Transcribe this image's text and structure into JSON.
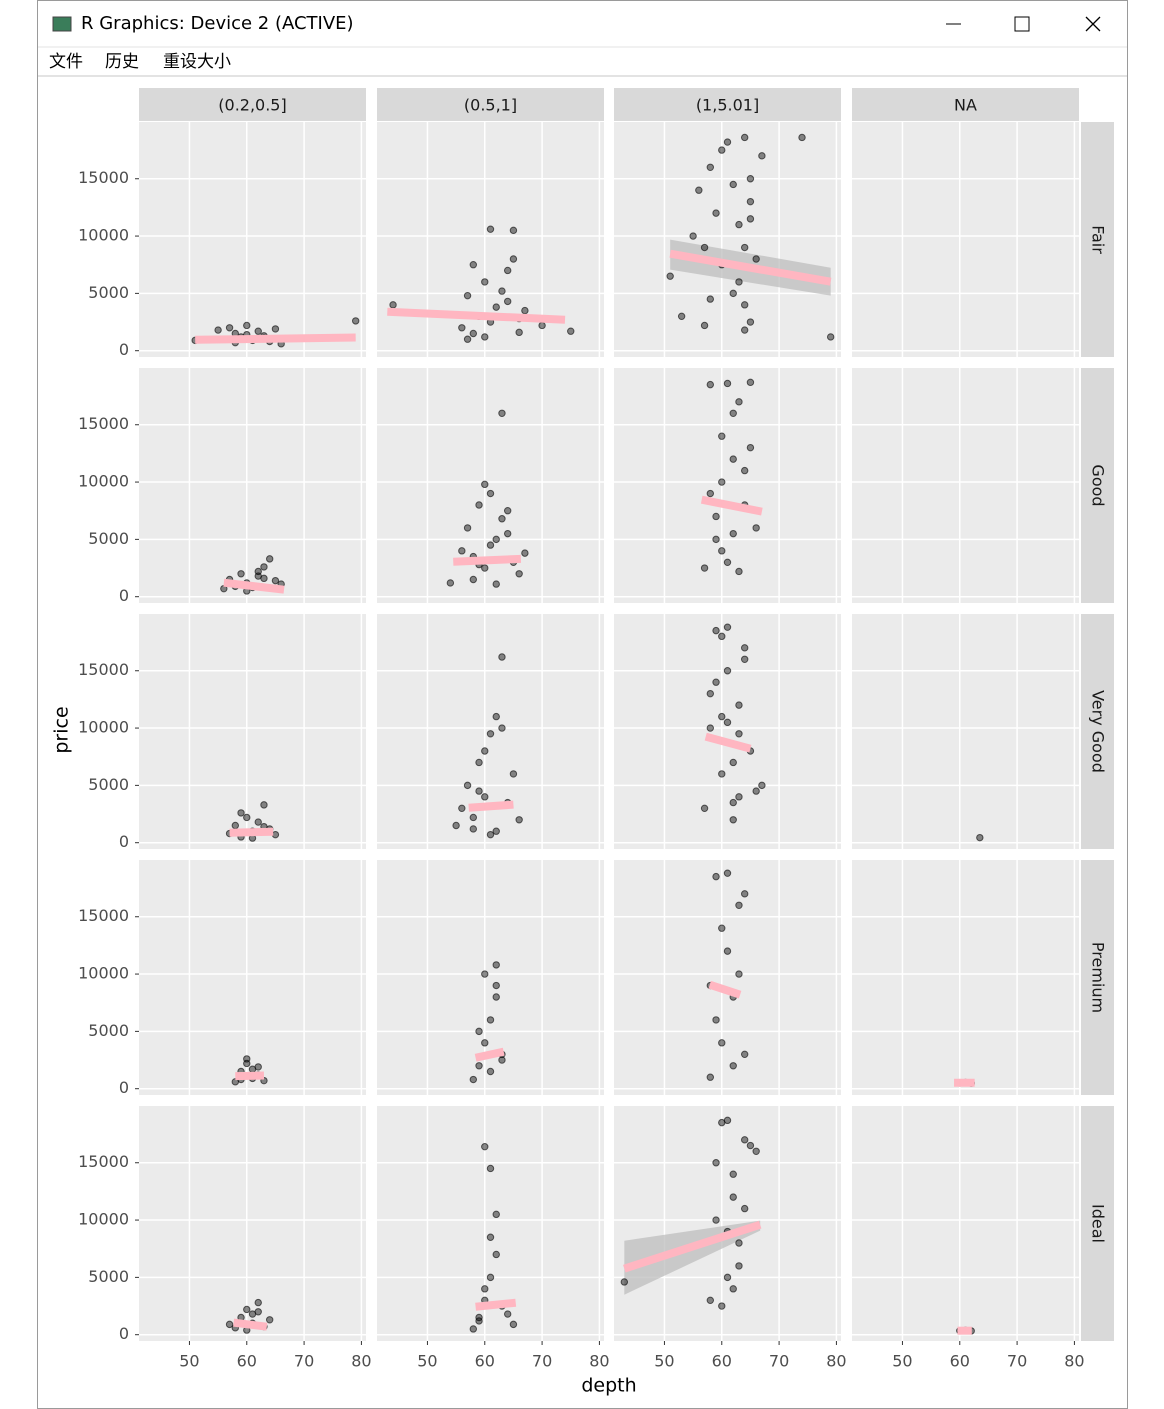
{
  "window": {
    "title": "R Graphics: Device 2 (ACTIVE)",
    "menu": [
      "文件",
      "历史",
      "重设大小"
    ]
  },
  "chart_data": {
    "type": "scatter",
    "x_label": "depth",
    "y_label": "price",
    "facet_cols": [
      "(0.2,0.5]",
      "(0.5,1]",
      "(1,5.01]",
      "NA"
    ],
    "facet_rows": [
      "Fair",
      "Good",
      "Very Good",
      "Premium",
      "Ideal"
    ],
    "xlim": [
      41.2,
      80.8
    ],
    "ylim": [
      -550,
      19950
    ],
    "xticks": [
      50,
      60,
      70,
      80
    ],
    "yticks": [
      0,
      5000,
      10000,
      15000
    ],
    "grid": true,
    "color": "#000000",
    "fit_color": "#ffb6c1",
    "band_color": "#bdbdbd",
    "panels": [
      [
        {
          "x": [
            51,
            55,
            57,
            58,
            59,
            60,
            61,
            62,
            63,
            64,
            65,
            66,
            58,
            60,
            63,
            79
          ],
          "y": [
            900,
            1800,
            2000,
            1500,
            1200,
            2200,
            900,
            1700,
            1300,
            800,
            1900,
            600,
            700,
            1400,
            1100,
            2600
          ],
          "fit": {
            "x": [
              51,
              79
            ],
            "y": [
              950,
              1150
            ]
          }
        },
        {
          "x": [
            44,
            56,
            57,
            58,
            59,
            60,
            61,
            62,
            63,
            64,
            65,
            66,
            67,
            61,
            65,
            58,
            60,
            64,
            75,
            70,
            57,
            66
          ],
          "y": [
            4000,
            2000,
            4800,
            7500,
            3000,
            6000,
            2500,
            3800,
            5200,
            4300,
            8000,
            2800,
            3500,
            10600,
            10500,
            1500,
            1200,
            7000,
            1700,
            2200,
            1000,
            1600
          ],
          "fit": {
            "x": [
              43,
              74
            ],
            "y": [
              3400,
              2700
            ]
          }
        },
        {
          "x": [
            51,
            53,
            55,
            56,
            57,
            58,
            59,
            60,
            61,
            62,
            63,
            64,
            64,
            65,
            65,
            64,
            65,
            66,
            67,
            58,
            60,
            63,
            74,
            79,
            64,
            65,
            57,
            62
          ],
          "y": [
            6500,
            3000,
            10000,
            14000,
            9000,
            16000,
            12000,
            7500,
            18200,
            5000,
            11000,
            18600,
            4000,
            15000,
            2500,
            9000,
            13000,
            8000,
            17000,
            4500,
            17500,
            6000,
            18600,
            1200,
            1800,
            11500,
            2200,
            14500
          ],
          "fit": {
            "x": [
              51,
              79
            ],
            "y": [
              8460,
              6020
            ],
            "lower": [
              7070,
              4800
            ],
            "upper": [
              9690,
              7240
            ]
          }
        },
        {
          "x": [],
          "y": []
        }
      ],
      [
        {
          "x": [
            56,
            57,
            58,
            59,
            60,
            61,
            62,
            63,
            64,
            65,
            66,
            60,
            62,
            63
          ],
          "y": [
            700,
            1500,
            900,
            2000,
            1200,
            800,
            1800,
            2600,
            3300,
            1400,
            1100,
            500,
            2200,
            1600
          ],
          "fit": {
            "x": [
              56,
              66.5
            ],
            "y": [
              1220,
              610
            ]
          }
        },
        {
          "x": [
            54,
            56,
            57,
            58,
            59,
            60,
            61,
            62,
            63,
            64,
            65,
            66,
            67,
            58,
            60,
            62,
            64,
            61,
            63,
            59
          ],
          "y": [
            1200,
            4000,
            6000,
            3500,
            8000,
            2500,
            9000,
            5000,
            16000,
            7500,
            3000,
            2000,
            3800,
            1500,
            9800,
            1100,
            5500,
            4500,
            6800,
            2800
          ],
          "fit": {
            "x": [
              54.5,
              66.3
            ],
            "y": [
              3050,
              3300
            ]
          }
        },
        {
          "x": [
            57,
            58,
            59,
            60,
            61,
            62,
            63,
            64,
            65,
            66,
            58,
            60,
            62,
            64,
            59,
            61,
            63,
            65,
            60,
            62
          ],
          "y": [
            2500,
            18500,
            5000,
            14000,
            3000,
            12000,
            17000,
            8000,
            18700,
            6000,
            9000,
            4000,
            16000,
            11000,
            7000,
            18600,
            2200,
            13000,
            10000,
            5500
          ],
          "fit": {
            "x": [
              56.5,
              67
            ],
            "y": [
              8460,
              7420
            ]
          }
        },
        {
          "x": [],
          "y": []
        }
      ],
      [
        {
          "x": [
            57,
            58,
            59,
            60,
            61,
            62,
            63,
            64,
            65,
            59,
            61,
            63
          ],
          "y": [
            800,
            1500,
            500,
            2200,
            1000,
            1800,
            3300,
            1200,
            700,
            2600,
            400,
            1400
          ],
          "fit": {
            "x": [
              57,
              64.6
            ],
            "y": [
              870,
              960
            ]
          }
        },
        {
          "x": [
            55,
            56,
            57,
            58,
            59,
            60,
            61,
            62,
            63,
            64,
            65,
            66,
            60,
            62,
            61,
            59,
            63,
            58
          ],
          "y": [
            1500,
            3000,
            5000,
            2200,
            7000,
            4000,
            9500,
            11000,
            16200,
            3500,
            6000,
            2000,
            8000,
            1000,
            700,
            4500,
            10000,
            1200
          ],
          "fit": {
            "x": [
              57.2,
              65
            ],
            "y": [
              3050,
              3320
            ]
          }
        },
        {
          "x": [
            57,
            58,
            59,
            60,
            61,
            62,
            63,
            64,
            65,
            66,
            67,
            59,
            61,
            63,
            60,
            62,
            64,
            58,
            62,
            61,
            60,
            63
          ],
          "y": [
            3000,
            10000,
            18500,
            6000,
            15000,
            2000,
            12000,
            17000,
            8000,
            4500,
            5000,
            14000,
            18800,
            9500,
            11000,
            7000,
            16000,
            13000,
            3500,
            10500,
            18000,
            4000
          ],
          "fit": {
            "x": [
              57.2,
              65
            ],
            "y": [
              9250,
              8200
            ]
          }
        },
        {
          "x": [
            63.5
          ],
          "y": [
            440
          ]
        }
      ],
      [
        {
          "x": [
            58,
            59,
            60,
            61,
            62,
            63,
            60,
            62,
            59,
            61
          ],
          "y": [
            600,
            1500,
            2200,
            900,
            1900,
            700,
            2600,
            1200,
            800,
            1700
          ],
          "fit": {
            "x": [
              58,
              63
            ],
            "y": [
              1100,
              1150
            ]
          }
        },
        {
          "x": [
            58,
            59,
            60,
            61,
            62,
            63,
            60,
            62,
            61,
            59,
            63,
            62
          ],
          "y": [
            800,
            2000,
            4000,
            6000,
            8000,
            3000,
            10000,
            10800,
            1500,
            5000,
            2500,
            9000
          ],
          "fit": {
            "x": [
              58.4,
              63.3
            ],
            "y": [
              2700,
              3230
            ]
          }
        },
        {
          "x": [
            58,
            59,
            60,
            61,
            62,
            63,
            64,
            59,
            61,
            63,
            60,
            62,
            58,
            64
          ],
          "y": [
            1000,
            18500,
            4000,
            12000,
            8000,
            16000,
            3000,
            6000,
            18800,
            10000,
            14000,
            2000,
            9000,
            17000
          ],
          "fit": {
            "x": [
              57.9,
              63.2
            ],
            "y": [
              9070,
              8200
            ]
          }
        },
        {
          "x": [
            60,
            61,
            62
          ],
          "y": [
            500,
            550,
            480
          ],
          "fit": {
            "x": [
              59,
              62.6
            ],
            "y": [
              520,
              520
            ]
          }
        }
      ],
      [
        {
          "x": [
            57,
            58,
            59,
            60,
            61,
            62,
            63,
            64,
            60,
            62,
            61
          ],
          "y": [
            900,
            600,
            1500,
            2200,
            1000,
            2800,
            700,
            1300,
            400,
            2000,
            1800
          ],
          "fit": {
            "x": [
              57.7,
              63.5
            ],
            "y": [
              1050,
              700
            ]
          }
        },
        {
          "x": [
            58,
            59,
            60,
            61,
            62,
            63,
            64,
            65,
            60,
            61,
            62,
            60,
            61,
            59
          ],
          "y": [
            500,
            1500,
            3000,
            5000,
            7000,
            2500,
            1800,
            900,
            16400,
            14500,
            10500,
            4000,
            8500,
            1200
          ],
          "fit": {
            "x": [
              58.4,
              65.4
            ],
            "y": [
              2440,
              2790
            ]
          }
        },
        {
          "x": [
            43,
            58,
            59,
            60,
            61,
            62,
            63,
            64,
            65,
            66,
            60,
            62,
            61,
            63,
            59,
            64,
            61,
            62
          ],
          "y": [
            4600,
            3000,
            10000,
            18500,
            5000,
            14000,
            8000,
            17000,
            16500,
            16000,
            2500,
            12000,
            18700,
            6000,
            15000,
            11000,
            9000,
            4000
          ],
          "fit": {
            "x": [
              43,
              66.7
            ],
            "y": [
              5760,
              9600
            ],
            "lower": [
              3490,
              9080
            ],
            "upper": [
              8200,
              9950
            ]
          }
        },
        {
          "x": [
            60,
            61,
            62
          ],
          "y": [
            350,
            380,
            330
          ],
          "fit": {
            "x": [
              59.6,
              62.1
            ],
            "y": [
              350,
              350
            ]
          }
        }
      ]
    ]
  }
}
